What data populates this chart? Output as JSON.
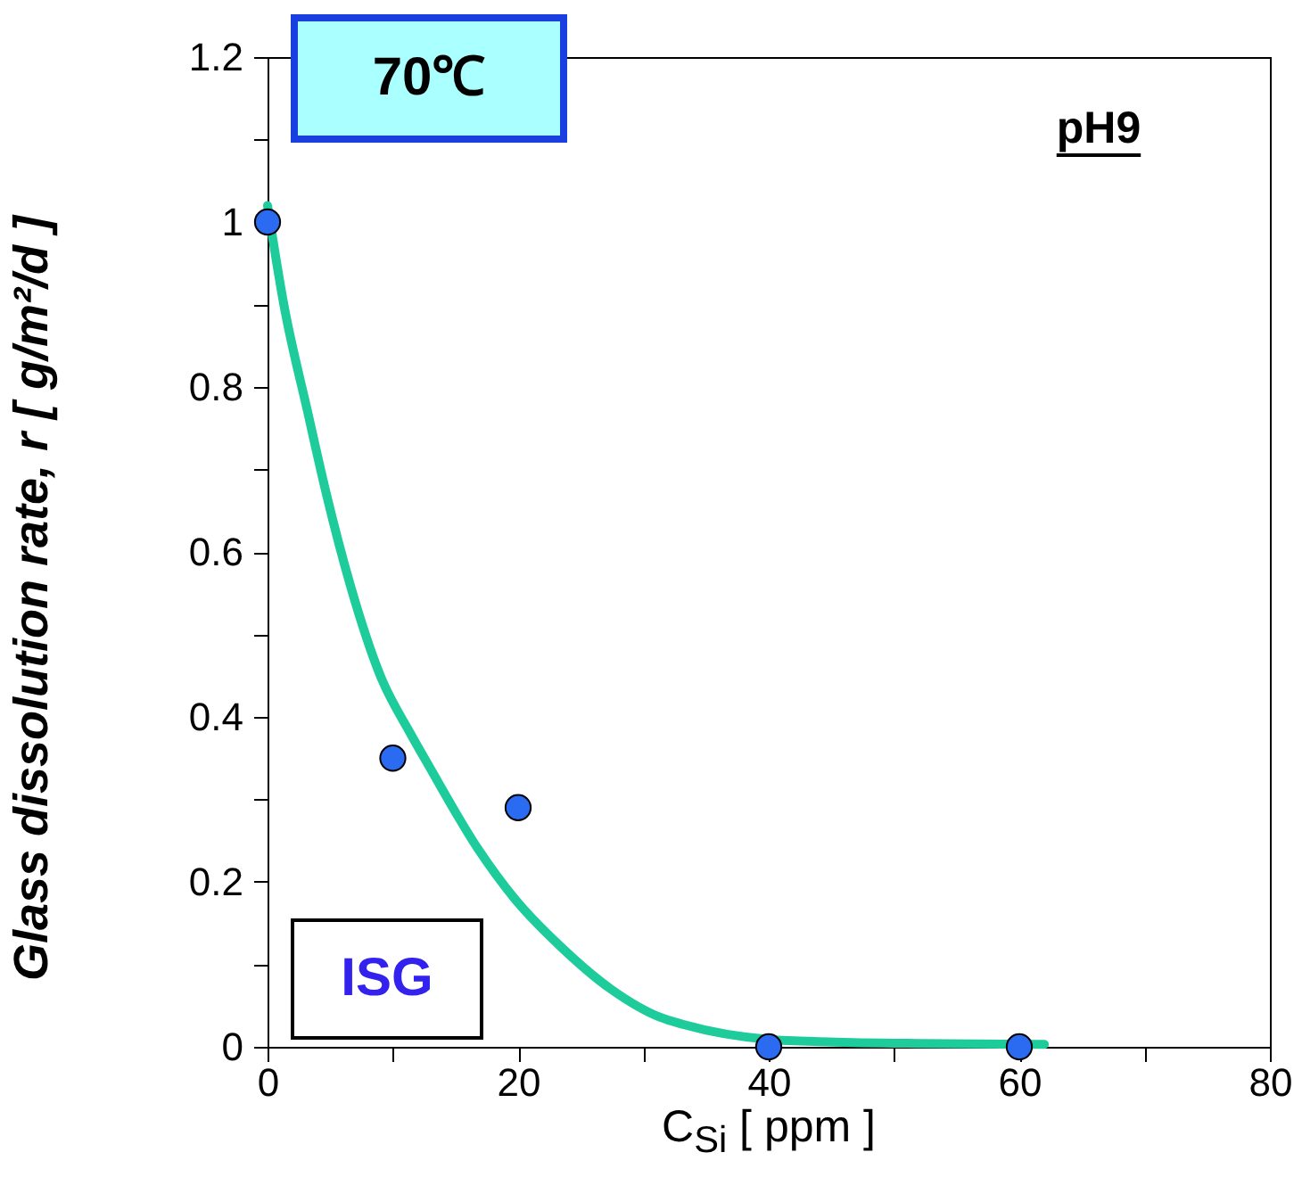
{
  "chart_data": {
    "type": "scatter",
    "xlabel": "C$_{Si}$ [ ppm ]",
    "ylabel": "Glass dissolution rate, r  [ g/m²/d ]",
    "annotations": [
      "70℃",
      "pH9",
      "ISG"
    ],
    "xlim": [
      0,
      80
    ],
    "ylim": [
      0,
      1.2
    ],
    "grid": false,
    "marker": "circle",
    "xticks": [
      0,
      {
        "value": 10,
        "label": null
      },
      20,
      {
        "value": 30,
        "label": null
      },
      40,
      {
        "value": 50,
        "label": null
      },
      60,
      {
        "value": 70,
        "label": null
      },
      80
    ],
    "yticks": [
      0,
      {
        "value": 0.1,
        "label": null
      },
      0.2,
      {
        "value": 0.3,
        "label": null
      },
      0.4,
      {
        "value": 0.5,
        "label": null
      },
      0.6,
      {
        "value": 0.7,
        "label": null
      },
      0.8,
      {
        "value": 0.9,
        "label": null
      },
      1,
      {
        "value": 1.1,
        "label": null
      },
      1.2
    ],
    "series": [
      {
        "type": "line",
        "color": "#1dcc9a",
        "marker": "none",
        "x": [
          0,
          1.3,
          3.2,
          4.7,
          6.6,
          9,
          11.4,
          12.9,
          16.8,
          19.7,
          23.5,
          27.4,
          31.3,
          33.2,
          40,
          44.8,
          52,
          62
        ],
        "values": [
          1.02,
          0.9,
          0.77,
          0.67,
          0.56,
          0.45,
          0.38,
          0.34,
          0.24,
          0.18,
          0.12,
          0.07,
          0.036,
          0.027,
          0.009,
          0.006,
          0.004,
          0.003
        ]
      },
      {
        "color": "#2a6bf2",
        "x": [
          0,
          10,
          20,
          40,
          60
        ],
        "values": [
          1,
          0.35,
          0.29,
          0,
          0
        ]
      }
    ]
  }
}
